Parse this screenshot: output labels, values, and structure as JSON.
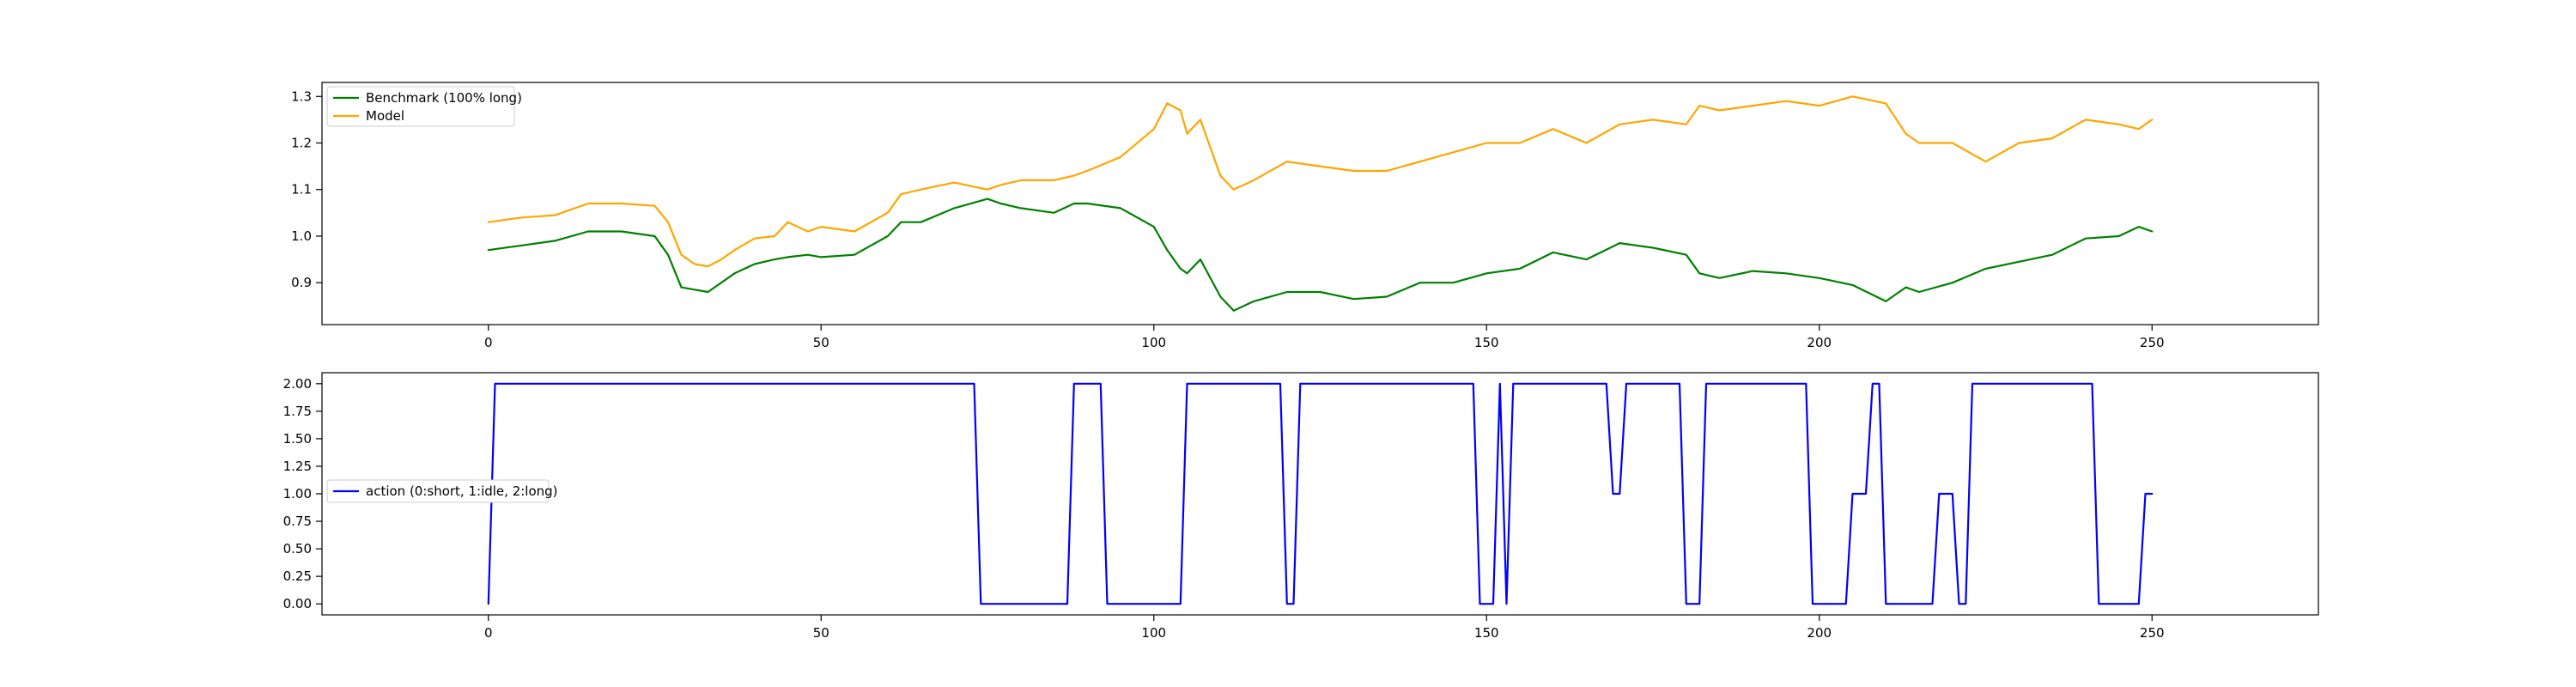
{
  "chart_data": [
    {
      "type": "line",
      "title": "",
      "xlabel": "",
      "ylabel": "",
      "xlim": [
        -25,
        275
      ],
      "ylim": [
        0.81,
        1.33
      ],
      "xticks": [
        0,
        50,
        100,
        150,
        200,
        250
      ],
      "yticks": [
        0.9,
        1.0,
        1.1,
        1.2,
        1.3
      ],
      "ytick_labels": [
        "0.9",
        "1.0",
        "1.1",
        "1.2",
        "1.3"
      ],
      "legend_position": "top-left",
      "series": [
        {
          "name": "Benchmark (100% long)",
          "color": "#008000",
          "x": [
            0,
            5,
            10,
            15,
            20,
            25,
            27,
            29,
            31,
            33,
            35,
            37,
            40,
            43,
            45,
            48,
            50,
            55,
            60,
            62,
            65,
            70,
            75,
            77,
            80,
            85,
            88,
            90,
            95,
            100,
            102,
            104,
            105,
            107,
            110,
            112,
            115,
            120,
            125,
            130,
            135,
            140,
            145,
            150,
            155,
            160,
            165,
            170,
            175,
            180,
            182,
            185,
            190,
            195,
            200,
            205,
            210,
            213,
            215,
            220,
            225,
            230,
            235,
            240,
            245,
            248,
            250
          ],
          "y": [
            0.97,
            0.98,
            0.99,
            1.01,
            1.01,
            1.0,
            0.96,
            0.89,
            0.885,
            0.88,
            0.9,
            0.92,
            0.94,
            0.95,
            0.955,
            0.96,
            0.955,
            0.96,
            1.0,
            1.03,
            1.03,
            1.06,
            1.08,
            1.07,
            1.06,
            1.05,
            1.07,
            1.07,
            1.06,
            1.02,
            0.97,
            0.93,
            0.92,
            0.95,
            0.87,
            0.84,
            0.86,
            0.88,
            0.88,
            0.865,
            0.87,
            0.9,
            0.9,
            0.92,
            0.93,
            0.965,
            0.95,
            0.985,
            0.975,
            0.96,
            0.92,
            0.91,
            0.925,
            0.92,
            0.91,
            0.895,
            0.86,
            0.89,
            0.88,
            0.9,
            0.93,
            0.945,
            0.96,
            0.995,
            1.0,
            1.02,
            1.01
          ]
        },
        {
          "name": "Model",
          "color": "#ffa500",
          "x": [
            0,
            5,
            10,
            15,
            20,
            25,
            27,
            29,
            31,
            33,
            35,
            37,
            40,
            43,
            45,
            48,
            50,
            55,
            60,
            62,
            65,
            70,
            75,
            77,
            80,
            85,
            88,
            90,
            95,
            100,
            102,
            104,
            105,
            107,
            110,
            112,
            115,
            120,
            125,
            130,
            135,
            140,
            145,
            150,
            155,
            160,
            165,
            170,
            175,
            180,
            182,
            185,
            190,
            195,
            200,
            205,
            210,
            213,
            215,
            220,
            225,
            230,
            235,
            240,
            245,
            248,
            250
          ],
          "y": [
            1.03,
            1.04,
            1.045,
            1.07,
            1.07,
            1.065,
            1.03,
            0.96,
            0.94,
            0.935,
            0.95,
            0.97,
            0.995,
            1.0,
            1.03,
            1.01,
            1.02,
            1.01,
            1.05,
            1.09,
            1.1,
            1.115,
            1.1,
            1.11,
            1.12,
            1.12,
            1.13,
            1.14,
            1.17,
            1.23,
            1.285,
            1.27,
            1.22,
            1.25,
            1.13,
            1.1,
            1.12,
            1.16,
            1.15,
            1.14,
            1.14,
            1.16,
            1.18,
            1.2,
            1.2,
            1.23,
            1.2,
            1.24,
            1.25,
            1.24,
            1.28,
            1.27,
            1.28,
            1.29,
            1.28,
            1.3,
            1.285,
            1.22,
            1.2,
            1.2,
            1.16,
            1.2,
            1.21,
            1.25,
            1.24,
            1.23,
            1.25
          ]
        }
      ]
    },
    {
      "type": "line",
      "title": "",
      "xlabel": "",
      "ylabel": "",
      "xlim": [
        -25,
        275
      ],
      "ylim": [
        -0.1,
        2.1
      ],
      "xticks": [
        0,
        50,
        100,
        150,
        200,
        250
      ],
      "yticks": [
        0.0,
        0.25,
        0.5,
        0.75,
        1.0,
        1.25,
        1.5,
        1.75,
        2.0
      ],
      "ytick_labels": [
        "0.00",
        "0.25",
        "0.50",
        "0.75",
        "1.00",
        "1.25",
        "1.50",
        "1.75",
        "2.00"
      ],
      "legend_position": "center-left",
      "series": [
        {
          "name": "action (0:short, 1:idle, 2:long)",
          "color": "#0000ff",
          "x": [
            0,
            1,
            73,
            74,
            87,
            88,
            92,
            93,
            104,
            105,
            119,
            120,
            121,
            122,
            148,
            149,
            151,
            152,
            153,
            154,
            155,
            168,
            169,
            170,
            171,
            179,
            180,
            182,
            183,
            198,
            199,
            204,
            205,
            207,
            208,
            209,
            210,
            217,
            218,
            220,
            221,
            222,
            223,
            241,
            242,
            248,
            249,
            250
          ],
          "y": [
            0,
            2,
            2,
            0,
            0,
            2,
            2,
            0,
            0,
            2,
            2,
            0,
            0,
            2,
            2,
            0,
            0,
            2,
            0,
            2,
            2,
            2,
            1,
            1,
            2,
            2,
            0,
            0,
            2,
            2,
            0,
            0,
            1,
            1,
            2,
            2,
            0,
            0,
            1,
            1,
            0,
            0,
            2,
            2,
            0,
            0,
            1,
            1
          ]
        }
      ]
    }
  ]
}
